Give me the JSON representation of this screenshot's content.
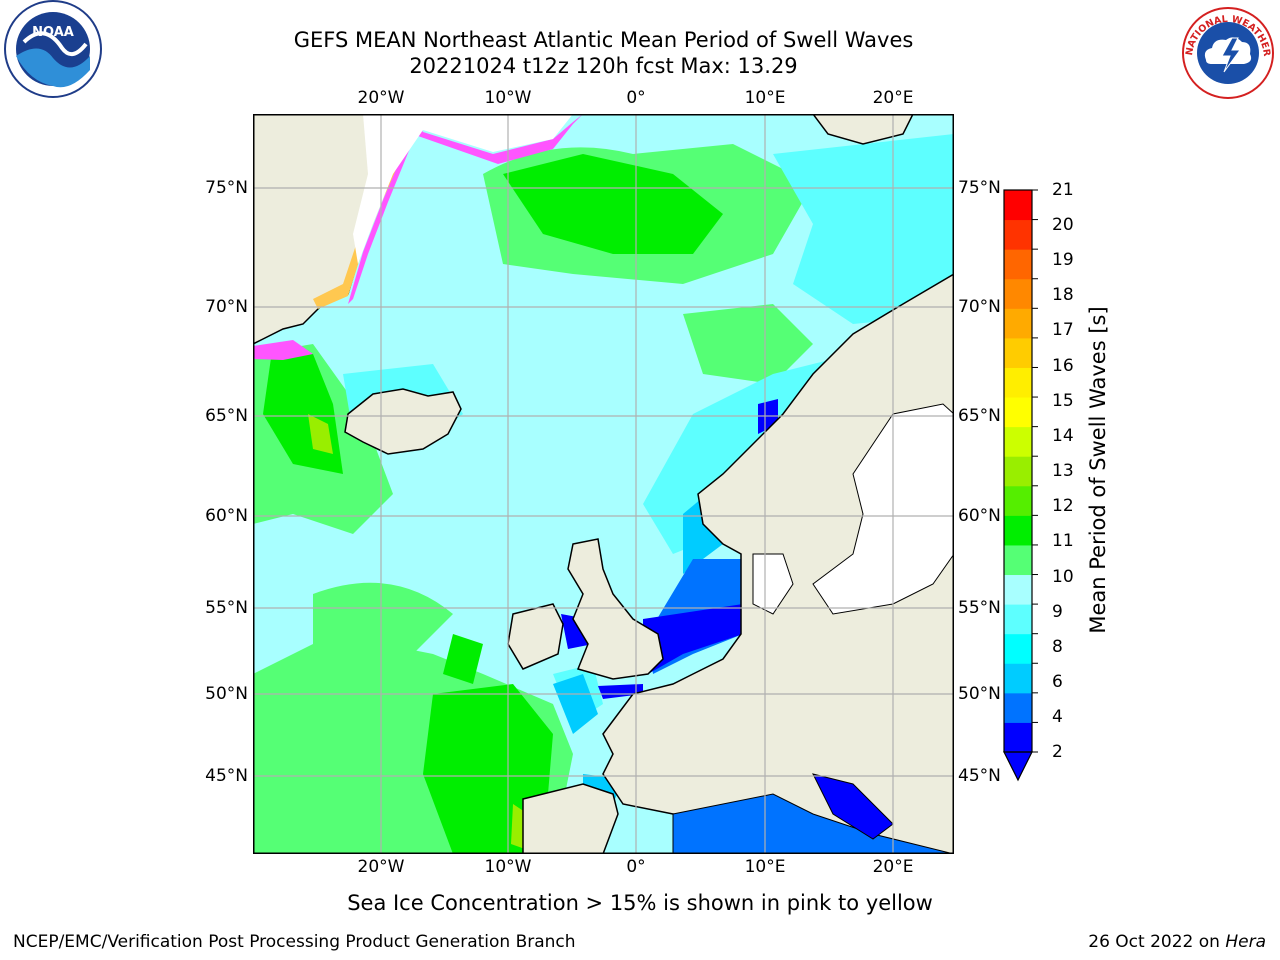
{
  "title": {
    "line1": "GEFS MEAN Northeast Atlantic Mean Period of Swell Waves",
    "line2": "20221024 t12z 120h fcst   Max: 13.29"
  },
  "map": {
    "lon_labels_top": [
      "20°W",
      "10°W",
      "0°",
      "10°E",
      "20°E"
    ],
    "lon_labels_bottom": [
      "20°W",
      "10°W",
      "0°",
      "10°E",
      "20°E"
    ],
    "lat_labels": [
      "75°N",
      "70°N",
      "65°N",
      "60°N",
      "55°N",
      "50°N",
      "45°N"
    ],
    "colors": {
      "land": "#ededdd",
      "ice_pink": "#ff55ff",
      "ice_yellow": "#ffc850",
      "unresolved_water": "#ffffff",
      "grid": "#b0b0b0"
    }
  },
  "colorbar": {
    "label": "Mean Period of Swell Waves [s]",
    "ticks": [
      "21",
      "20",
      "19",
      "18",
      "17",
      "16",
      "15",
      "14",
      "13",
      "12",
      "11",
      "10",
      "9",
      "8",
      "6",
      "4",
      "2"
    ],
    "colors_bottom_to_top": [
      "#0000ff",
      "#0073ff",
      "#00ccff",
      "#00ffff",
      "#5dffff",
      "#a8ffff",
      "#55ff75",
      "#00ee00",
      "#55ee00",
      "#99ee00",
      "#ccff00",
      "#ffff00",
      "#ffee00",
      "#ffcc00",
      "#ffaa00",
      "#ff8800",
      "#ff6600",
      "#ff3300",
      "#ff0000"
    ],
    "extend_color": "#0000ff"
  },
  "notes": {
    "ice": "Sea Ice Concentration > 15% is shown in pink to yellow"
  },
  "footer": {
    "left": "NCEP/EMC/Verification Post Processing Product Generation Branch",
    "right_date": "26 Oct 2022 on",
    "right_host": "Hera"
  },
  "logos": {
    "noaa_text": "NOAA",
    "nws_text": "NATIONAL WEATHER SERVICE"
  }
}
